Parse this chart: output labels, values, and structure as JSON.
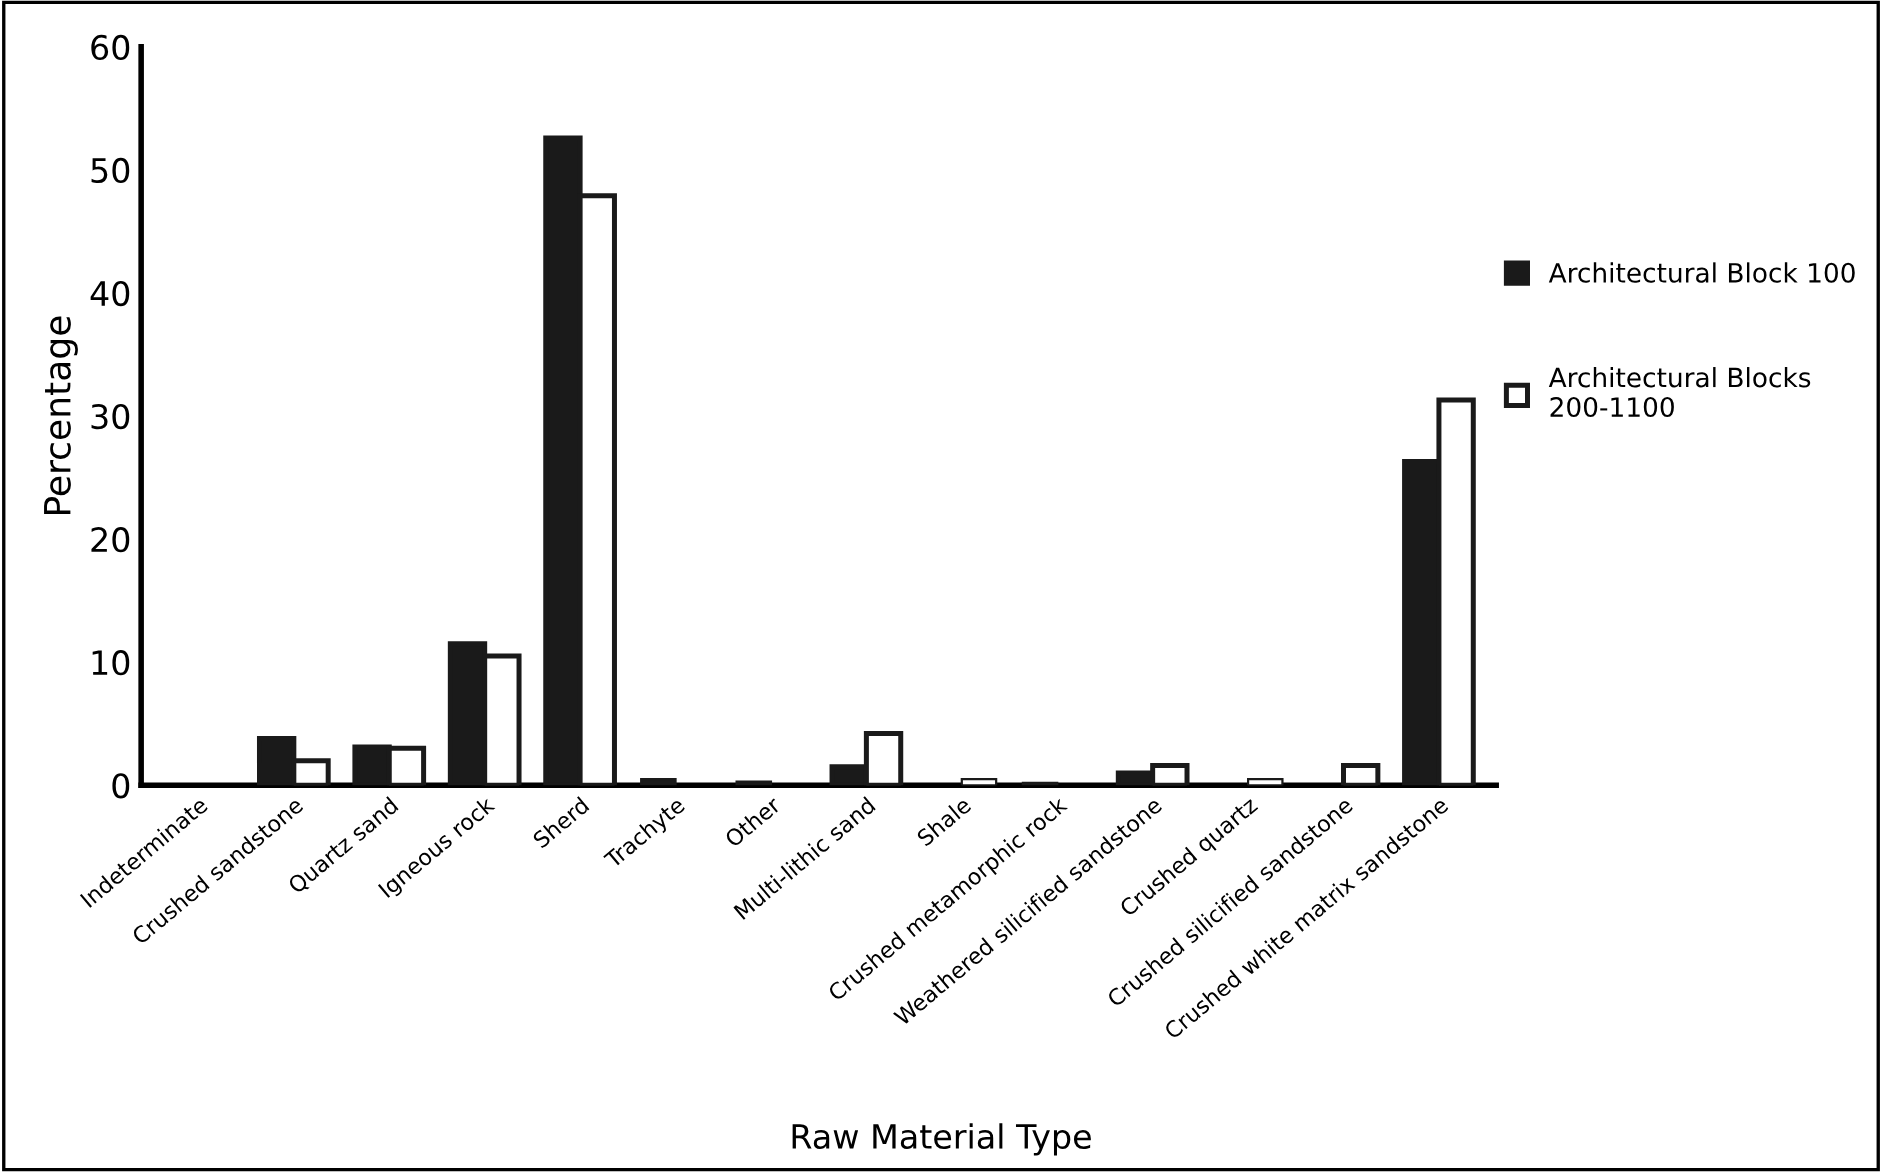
{
  "chart_data": {
    "type": "bar",
    "xlabel": "Raw Material Type",
    "ylabel": "Percentage",
    "categories": [
      "Indeterminate",
      "Crushed sandstone",
      "Quartz sand",
      "Igneous rock",
      "Sherd",
      "Trachyte",
      "Other",
      "Multi-lithic sand",
      "Shale",
      "Crushed metamorphic rock",
      "Weathered silicified sandstone",
      "Crushed quartz",
      "Crushed silicified sandstone",
      "Crushed white matrix sandstone"
    ],
    "series": [
      {
        "name": "Architectural Block 100",
        "color": "#1a1a1a",
        "values": [
          0,
          3.8,
          3.1,
          11.5,
          52.6,
          0.5,
          0.3,
          1.5,
          0,
          0.2,
          1.0,
          0,
          0,
          26.3
        ]
      },
      {
        "name": "Architectural Blocks\n200-1100",
        "color": "#ffffff",
        "values": [
          0,
          2.0,
          3.0,
          10.5,
          47.9,
          0,
          0,
          4.2,
          0.5,
          0,
          1.6,
          0.5,
          1.6,
          31.3
        ]
      }
    ],
    "ylim": [
      0,
      60
    ],
    "yticks": [
      0,
      10,
      20,
      30,
      40,
      50,
      60
    ],
    "grid": false,
    "legend": "right"
  }
}
